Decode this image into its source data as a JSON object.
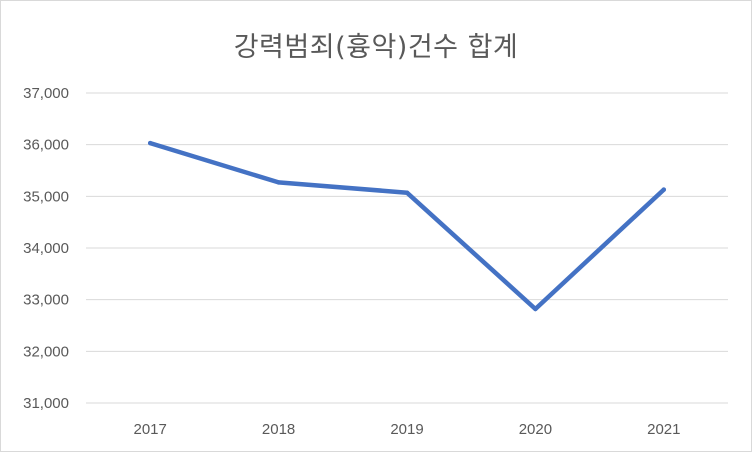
{
  "chart_data": {
    "type": "line",
    "title": "강력범죄(흉악)건수 합계",
    "xlabel": "",
    "ylabel": "",
    "categories": [
      "2017",
      "2018",
      "2019",
      "2020",
      "2021"
    ],
    "series": [
      {
        "values": [
          36030,
          35270,
          35070,
          32820,
          35130
        ],
        "color": "#4472c4"
      }
    ],
    "ylim": [
      31000,
      37000
    ],
    "yticks": [
      31000,
      32000,
      33000,
      34000,
      35000,
      36000,
      37000
    ],
    "ytick_labels": [
      "31,000",
      "32,000",
      "33,000",
      "34,000",
      "35,000",
      "36,000",
      "37,000"
    ],
    "grid": true,
    "gridline_color": "#d9d9d9",
    "legend": "none"
  }
}
